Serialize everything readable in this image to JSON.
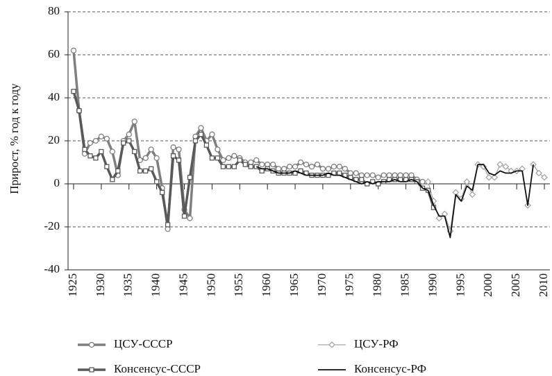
{
  "chart_data": {
    "type": "line",
    "ylabel": "Прирост, % год к году",
    "xlim": [
      1924,
      2011
    ],
    "ylim": [
      -40,
      80
    ],
    "xticks": [
      1925,
      1930,
      1935,
      1940,
      1945,
      1950,
      1955,
      1960,
      1965,
      1970,
      1975,
      1980,
      1985,
      1990,
      1995,
      2000,
      2005,
      2010
    ],
    "yticks": [
      -40,
      -20,
      0,
      20,
      40,
      60,
      80
    ],
    "grid": true,
    "series": [
      {
        "name": "ЦСУ-СССР",
        "color": "#7f7f7f",
        "marker": "circle",
        "x": [
          1925,
          1926,
          1927,
          1928,
          1929,
          1930,
          1931,
          1932,
          1933,
          1934,
          1935,
          1936,
          1937,
          1938,
          1939,
          1940,
          1941,
          1942,
          1943,
          1944,
          1945,
          1946,
          1947,
          1948,
          1949,
          1950,
          1951,
          1952,
          1953,
          1954,
          1955,
          1956,
          1957,
          1958,
          1959,
          1960,
          1961,
          1962,
          1963,
          1964,
          1965,
          1966,
          1967,
          1968,
          1969,
          1970,
          1971,
          1972,
          1973,
          1974,
          1975,
          1976,
          1977,
          1978,
          1979,
          1980,
          1981,
          1982,
          1983,
          1984,
          1985,
          1986,
          1987,
          1988
        ],
        "values": [
          62,
          34,
          14,
          19,
          20,
          22,
          21,
          15,
          4,
          20,
          23,
          29,
          11,
          12,
          16,
          12,
          -2,
          -21,
          17,
          16,
          -12,
          -16,
          22,
          26,
          20,
          23,
          16,
          11,
          12,
          13,
          12,
          10,
          10,
          11,
          9,
          9,
          9,
          7,
          7,
          8,
          8,
          10,
          9,
          8,
          9,
          7,
          7,
          8,
          8,
          7,
          5,
          5,
          4,
          4,
          4,
          3,
          4,
          4,
          4,
          4,
          4,
          4,
          2,
          1
        ]
      },
      {
        "name": "ЦСУ-РФ",
        "color": "#a6a6a6",
        "marker": "diamond",
        "x": [
          1989,
          1990,
          1991,
          1992,
          1993,
          1994,
          1995,
          1996,
          1997,
          1998,
          1999,
          2000,
          2001,
          2002,
          2003,
          2004,
          2005,
          2006,
          2007,
          2008,
          2009,
          2010
        ],
        "values": [
          1,
          -8,
          -16,
          -14,
          -22,
          -4,
          -7,
          1,
          -5,
          9,
          8,
          3,
          3,
          9,
          8,
          6,
          6,
          7,
          -10,
          9,
          5,
          3
        ]
      },
      {
        "name": "Консенсус-СССР",
        "color": "#595959",
        "marker": "square",
        "x": [
          1925,
          1926,
          1927,
          1928,
          1929,
          1930,
          1931,
          1932,
          1933,
          1934,
          1935,
          1936,
          1937,
          1938,
          1939,
          1940,
          1941,
          1942,
          1943,
          1944,
          1945,
          1946,
          1947,
          1948,
          1949,
          1950,
          1951,
          1952,
          1953,
          1954,
          1955,
          1956,
          1957,
          1958,
          1959,
          1960,
          1961,
          1962,
          1963,
          1964,
          1965,
          1966,
          1967,
          1968,
          1969,
          1970,
          1971,
          1972,
          1973,
          1974,
          1975,
          1976,
          1977,
          1978,
          1979,
          1980,
          1981,
          1982,
          1983,
          1984,
          1985,
          1986,
          1987,
          1988,
          1989,
          1990
        ],
        "values": [
          43,
          34,
          16,
          13,
          12,
          15,
          8,
          2,
          6,
          19,
          20,
          15,
          6,
          6,
          7,
          1,
          -4,
          -19,
          13,
          11,
          -15,
          3,
          20,
          23,
          18,
          12,
          12,
          8,
          8,
          8,
          11,
          9,
          8,
          8,
          6,
          7,
          6,
          5,
          5,
          5,
          5,
          6,
          5,
          4,
          4,
          4,
          4,
          5,
          5,
          4,
          3,
          2,
          2,
          0,
          1,
          0,
          1,
          2,
          2,
          2,
          2,
          2,
          1,
          -2,
          -3,
          -11
        ]
      },
      {
        "name": "Консенсус-РФ",
        "color": "#111111",
        "marker": "none",
        "x": [
          1958,
          1959,
          1960,
          1961,
          1962,
          1963,
          1964,
          1965,
          1966,
          1967,
          1968,
          1969,
          1970,
          1971,
          1972,
          1973,
          1974,
          1975,
          1976,
          1977,
          1978,
          1979,
          1980,
          1981,
          1982,
          1983,
          1984,
          1985,
          1986,
          1987,
          1988,
          1989,
          1990,
          1991,
          1992,
          1993,
          1994,
          1995,
          1996,
          1997,
          1998,
          1999,
          2000,
          2001,
          2002,
          2003,
          2004,
          2005,
          2006,
          2007,
          2008
        ],
        "values": [
          8,
          7,
          7,
          6,
          5,
          5,
          5,
          6,
          5,
          4,
          4,
          4,
          4,
          5,
          4,
          4,
          3,
          2,
          1,
          0,
          1,
          0,
          1,
          1,
          1,
          2,
          1,
          1,
          2,
          1,
          -2,
          -3,
          -10,
          -15,
          -15,
          -25,
          -5,
          -8,
          -1,
          -3,
          9,
          9,
          5,
          4,
          6,
          5,
          5,
          6,
          6,
          -10,
          9
        ]
      }
    ]
  }
}
